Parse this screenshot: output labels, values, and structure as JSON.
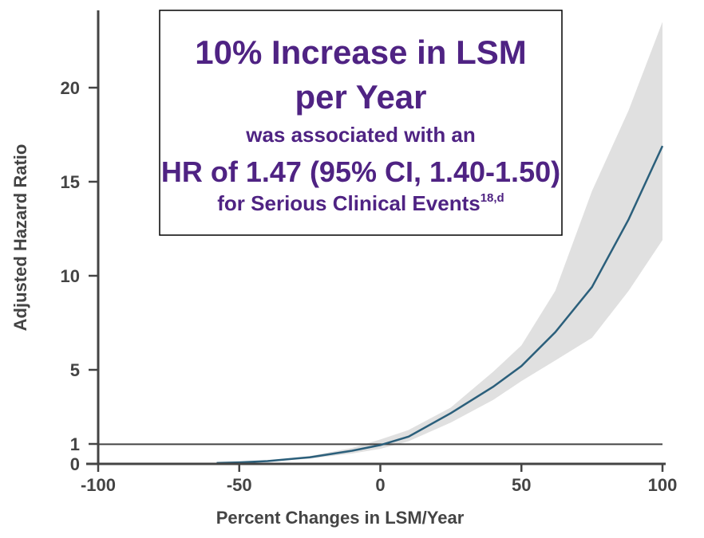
{
  "chart_data": {
    "type": "area",
    "title": "",
    "xlabel": "Percent Changes in LSM/Year",
    "ylabel": "Adjusted Hazard Ratio",
    "xlim": [
      -100,
      100
    ],
    "ylim": [
      0,
      24
    ],
    "xticks": [
      -100,
      -50,
      0,
      50,
      100
    ],
    "yticks": [
      0,
      1,
      5,
      10,
      15,
      20
    ],
    "reference_line": 1,
    "grid": false,
    "annotation": {
      "line1": "10% Increase in LSM",
      "line2": "per Year",
      "line3": "was associated with an",
      "line4": "HR of 1.47 (95% CI, 1.40-1.50)",
      "line5": "for Serious Clinical Events",
      "superscript": "18,d"
    },
    "series": [
      {
        "x": [
          -58,
          -50,
          -40,
          -25,
          -10,
          0,
          10,
          25,
          40,
          50,
          62,
          75,
          88,
          100
        ],
        "y": [
          0.05,
          0.08,
          0.15,
          0.35,
          0.7,
          1.0,
          1.45,
          2.7,
          4.1,
          5.2,
          7.0,
          9.4,
          13.0,
          16.9
        ],
        "ci_upper": [
          0.06,
          0.1,
          0.18,
          0.42,
          0.85,
          1.3,
          1.8,
          3.0,
          4.9,
          6.3,
          9.2,
          14.5,
          18.8,
          23.5
        ],
        "ci_lower": [
          0.04,
          0.06,
          0.12,
          0.28,
          0.55,
          0.8,
          1.2,
          2.2,
          3.4,
          4.4,
          5.5,
          6.7,
          9.2,
          11.9
        ]
      }
    ],
    "colors": {
      "line": "#2b5f7b",
      "band": "#e0e0e0",
      "axis": "#444444",
      "annotation": "#4f2383"
    }
  }
}
